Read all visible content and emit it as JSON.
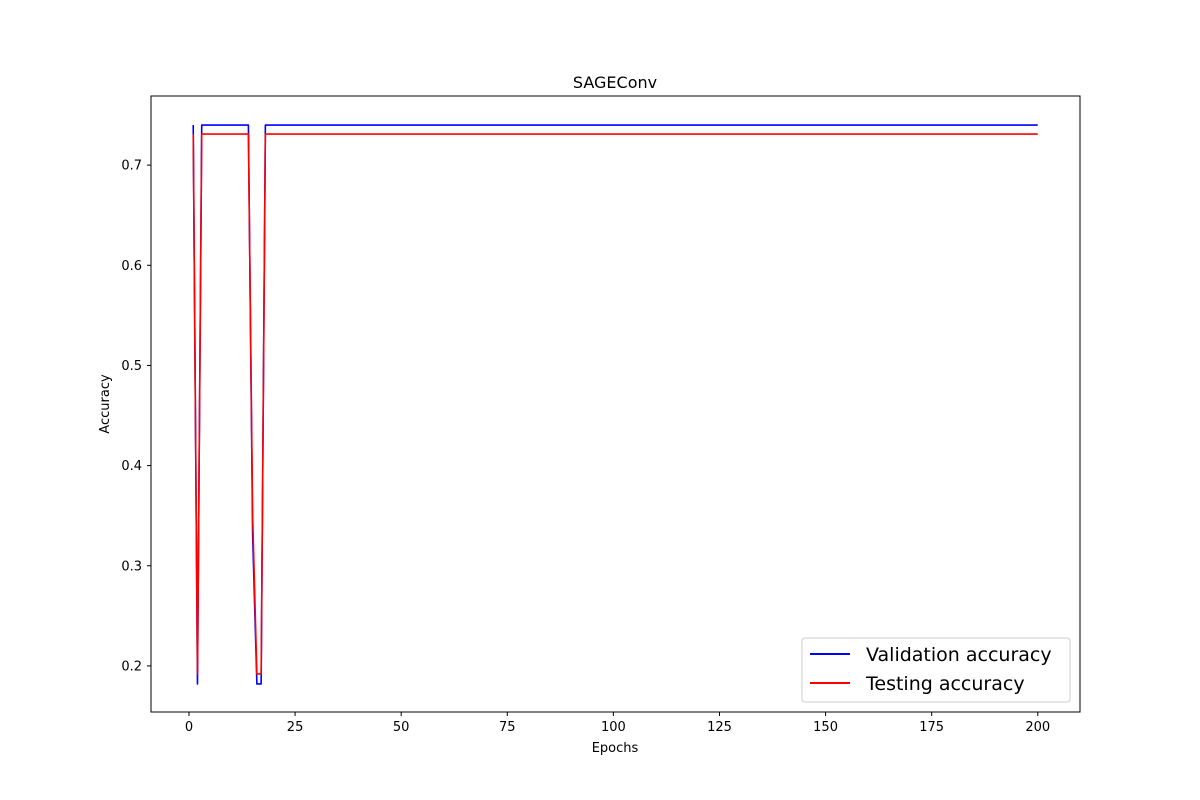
{
  "chart_data": {
    "type": "line",
    "title": "SAGEConv",
    "xlabel": "Epochs",
    "ylabel": "Accuracy",
    "xlim": [
      -8.95,
      209.95
    ],
    "ylim": [
      0.154,
      0.769
    ],
    "xticks": [
      0,
      25,
      50,
      75,
      100,
      125,
      150,
      175,
      200
    ],
    "yticks": [
      0.2,
      0.3,
      0.4,
      0.5,
      0.6,
      0.7
    ],
    "ytick_labels": [
      "0.2",
      "0.3",
      "0.4",
      "0.5",
      "0.6",
      "0.7"
    ],
    "grid": false,
    "legend_position": "lower-right",
    "series": [
      {
        "name": "Validation accuracy",
        "color": "#0000ff",
        "x": [
          1,
          2,
          3,
          4,
          14,
          15,
          16,
          17,
          18,
          200
        ],
        "y": [
          0.74,
          0.182,
          0.74,
          0.74,
          0.74,
          0.33,
          0.182,
          0.182,
          0.74,
          0.74
        ]
      },
      {
        "name": "Testing accuracy",
        "color": "#ff0000",
        "x": [
          1,
          2,
          3,
          4,
          14,
          15,
          16,
          17,
          18,
          200
        ],
        "y": [
          0.731,
          0.192,
          0.731,
          0.731,
          0.731,
          0.35,
          0.192,
          0.192,
          0.731,
          0.731
        ]
      }
    ]
  }
}
